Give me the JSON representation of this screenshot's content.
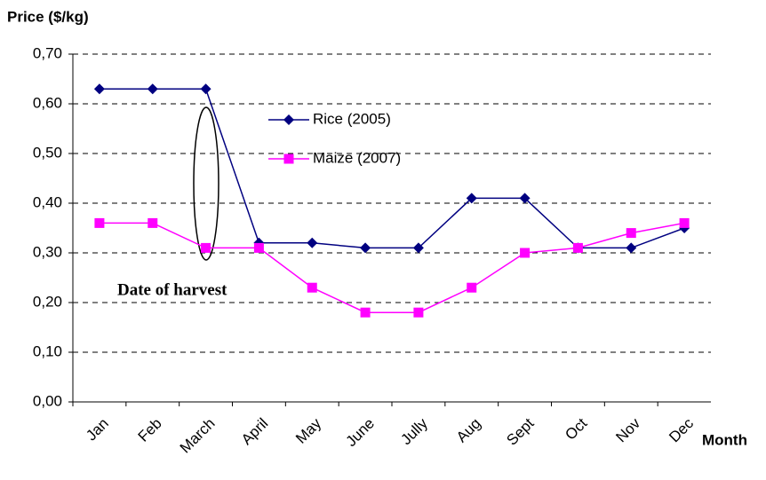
{
  "chart_data": {
    "type": "line",
    "y_label": "Price ($/kg)",
    "x_label": "Month",
    "annotation": "Date of harvest",
    "categories": [
      "Jan",
      "Feb",
      "March",
      "April",
      "May",
      "June",
      "Jully",
      "Aug",
      "Sept",
      "Oct",
      "Nov",
      "Dec"
    ],
    "series": [
      {
        "name": "Rice (2005)",
        "color": "#000080",
        "marker": "diamond",
        "values": [
          0.63,
          0.63,
          0.63,
          0.32,
          0.32,
          0.31,
          0.31,
          0.41,
          0.41,
          0.31,
          0.31,
          0.35
        ]
      },
      {
        "name": "Maize (2007)",
        "color": "#ff00ff",
        "marker": "square",
        "values": [
          0.36,
          0.36,
          0.31,
          0.31,
          0.23,
          0.18,
          0.18,
          0.23,
          0.3,
          0.31,
          0.34,
          0.36
        ]
      }
    ],
    "ylim": [
      0,
      0.7
    ],
    "yticks": [
      {
        "value": 0,
        "label": "0,00"
      },
      {
        "value": 0.1,
        "label": "0,10"
      },
      {
        "value": 0.2,
        "label": "0,20"
      },
      {
        "value": 0.3,
        "label": "0,30"
      },
      {
        "value": 0.4,
        "label": "0,40"
      },
      {
        "value": 0.5,
        "label": "0,50"
      },
      {
        "value": 0.6,
        "label": "0,60"
      },
      {
        "value": 0.7,
        "label": "0,70"
      }
    ],
    "grid": true
  }
}
